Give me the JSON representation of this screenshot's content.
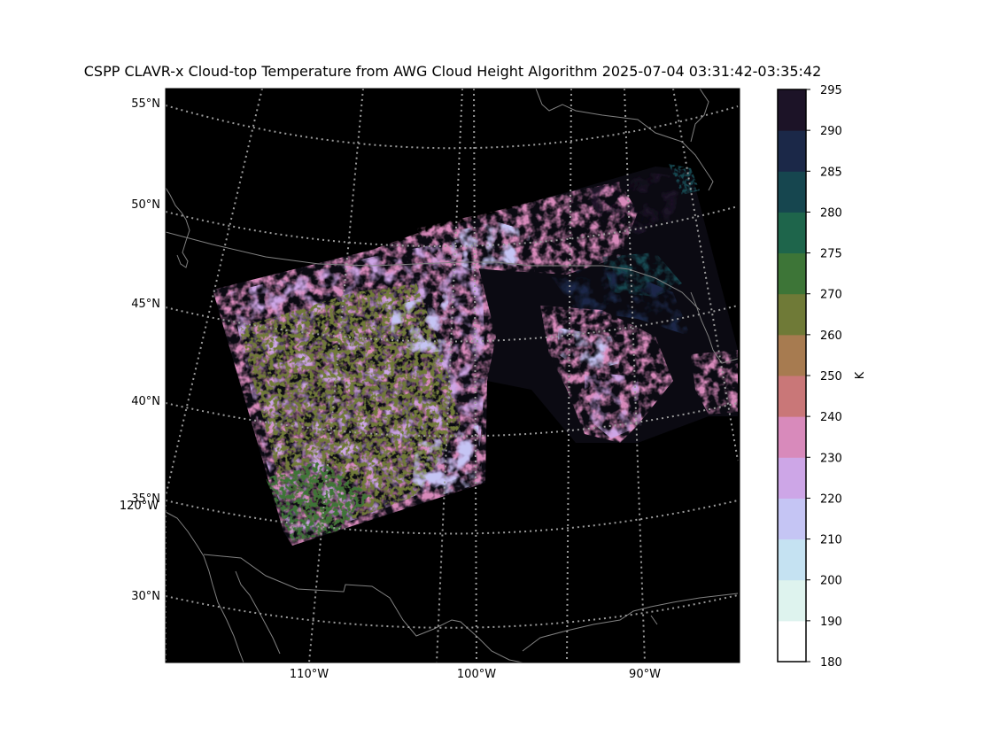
{
  "title": "CSPP CLAVR-x Cloud-top Temperature from AWG Cloud Height Algorithm 2025-07-04 03:31:42-03:35:42",
  "map": {
    "lat_labels": [
      "55°N",
      "50°N",
      "45°N",
      "40°N",
      "35°N",
      "30°N"
    ],
    "lon_labels": [
      "120°W",
      "110°W",
      "100°W",
      "90°W"
    ],
    "background_color": "#000000",
    "coastline_color": "#808080",
    "gridline_color": "#9a9a9a",
    "gridline_style": "dotted"
  },
  "colorbar": {
    "unit_label": "K",
    "ticks": [
      "180",
      "190",
      "200",
      "210",
      "220",
      "230",
      "240",
      "250",
      "260",
      "270",
      "275",
      "280",
      "285",
      "290",
      "295"
    ],
    "colors": [
      "#ffffff",
      "#def3ee",
      "#c5e2f2",
      "#c5c5f4",
      "#cda6e7",
      "#d88abb",
      "#c97778",
      "#a77b50",
      "#6f7a37",
      "#3d7537",
      "#1e654b",
      "#16464f",
      "#1b2848",
      "#1c1327",
      "#030303"
    ]
  }
}
